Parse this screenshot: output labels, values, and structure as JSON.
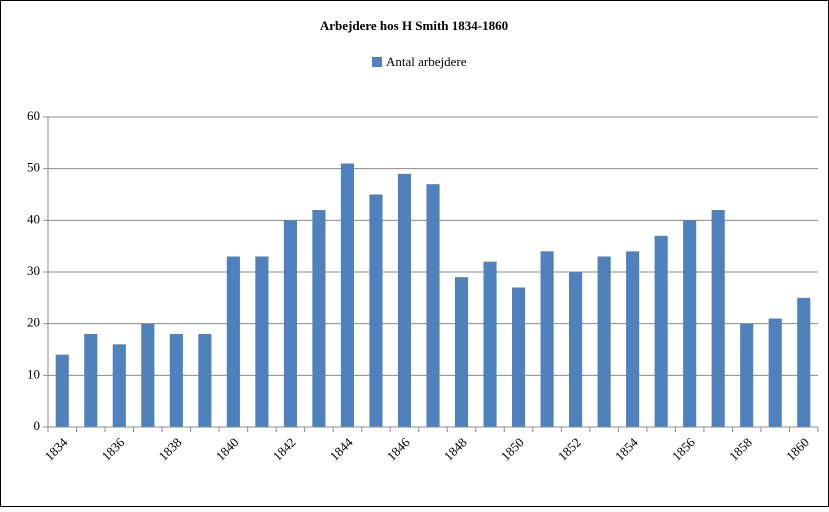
{
  "chart_data": {
    "type": "bar",
    "title": "Arbejdere hos H Smith 1834-1860",
    "categories": [
      "1834",
      null,
      "1836",
      null,
      "1838",
      null,
      "1840",
      null,
      "1842",
      null,
      "1844",
      null,
      "1846",
      null,
      "1848",
      null,
      "1850",
      null,
      "1852",
      null,
      "1854",
      null,
      "1856",
      null,
      "1858",
      null,
      "1860"
    ],
    "series": [
      {
        "name": "Antal arbejdere",
        "color": "#4f81bd",
        "values": [
          14,
          18,
          16,
          20,
          18,
          18,
          33,
          33,
          40,
          42,
          51,
          45,
          49,
          47,
          29,
          32,
          27,
          34,
          30,
          33,
          34,
          37,
          40,
          42,
          20,
          21,
          25
        ]
      }
    ],
    "ylim": [
      0,
      60
    ],
    "yticks": [
      0,
      10,
      20,
      30,
      40,
      50,
      60
    ],
    "grid": true,
    "legend": "top"
  }
}
